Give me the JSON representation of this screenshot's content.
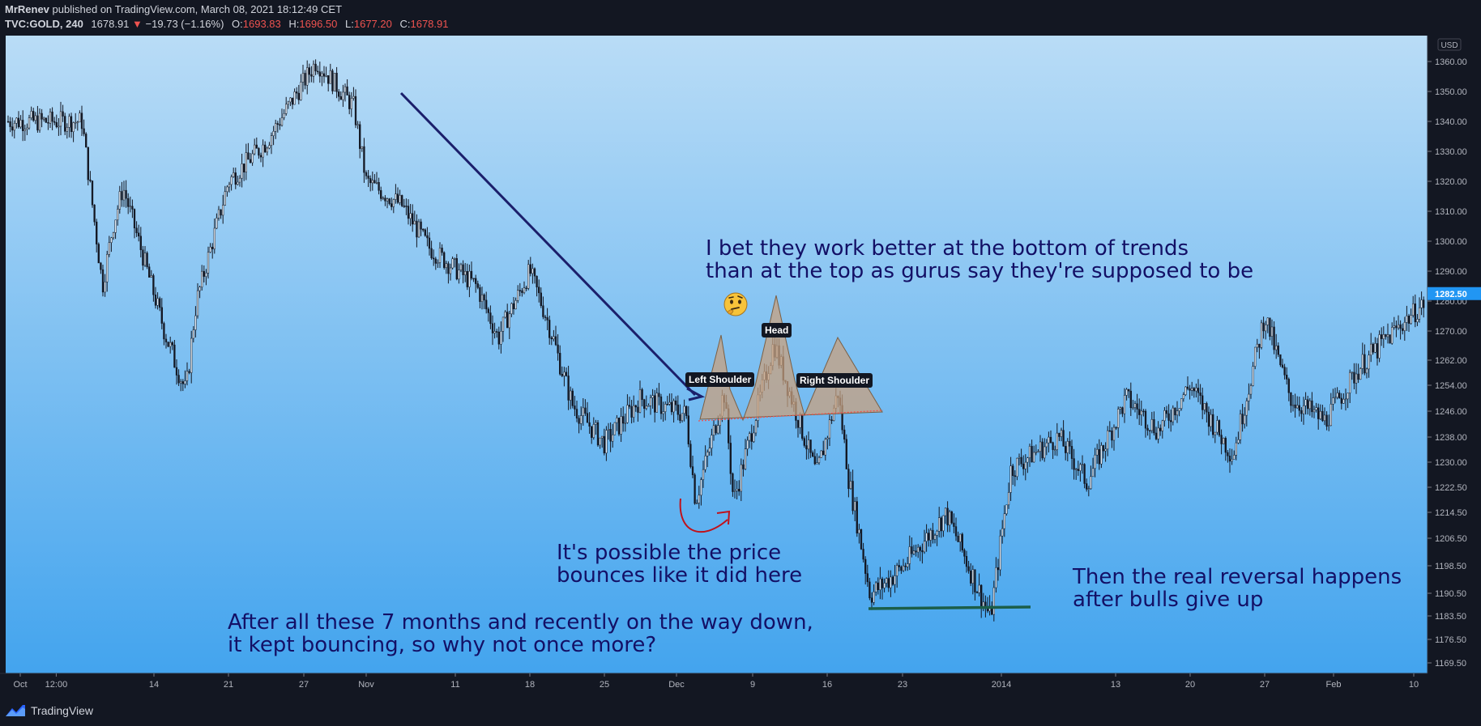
{
  "header": {
    "author": "MrRenev",
    "published": "published on TradingView.com, March 08, 2021 18:12:49 CET",
    "symbol": "TVC:GOLD, 240",
    "last": "1678.91",
    "change": "−19.73 (−1.16%)",
    "o_label": "O:",
    "o": "1693.83",
    "h_label": "H:",
    "h": "1696.50",
    "l_label": "L:",
    "l": "1677.20",
    "c_label": "C:",
    "c": "1678.91",
    "down_icon": "triangle-down-icon"
  },
  "footer": {
    "brand": "TradingView",
    "logo_icon": "tradingview-logo-icon"
  },
  "colors": {
    "bg_top": "#b9dcf6",
    "bg_bottom": "#43a4ee",
    "candle": "#131722",
    "trendline": "#1b1f6b",
    "pattern_fill": "#c8a07e",
    "neckline": "#ef5350",
    "support": "#1b5e4a",
    "bounce_arrow": "#c0121b",
    "price_tag": "#2196f3",
    "annotation_text": "#131066"
  },
  "annotations": {
    "bet_line1": "I bet they work better at the bottom of trends",
    "bet_line2": "than at the top as gurus say they're supposed to be",
    "bounce_line1": "It's possible the price",
    "bounce_line2": "bounces like it did here",
    "months_line1": "After all these 7 months and recently on the way down,",
    "months_line2": "it kept bouncing, so why not once more?",
    "reversal_line1": "Then the real reversal happens",
    "reversal_line2": "after bulls give up",
    "left_shoulder": "Left Shoulder",
    "head": "Head",
    "right_shoulder": "Right Shoulder",
    "emoji_icon": "thinking-face-icon"
  },
  "chart_data": {
    "type": "candlestick",
    "title": "",
    "currency": "USD",
    "current_price": "1282.50",
    "ylim": [
      1164,
      1365
    ],
    "yticks": [
      "1360.00",
      "1350.00",
      "1340.00",
      "1330.00",
      "1320.00",
      "1310.00",
      "1300.00",
      "1290.00",
      "1280.00",
      "1270.00",
      "1262.00",
      "1254.00",
      "1246.00",
      "1238.00",
      "1230.00",
      "1222.50",
      "1214.50",
      "1206.50",
      "1198.50",
      "1190.50",
      "1183.50",
      "1176.50",
      "1169.50"
    ],
    "xticks": [
      "Oct",
      "12:00",
      "14",
      "21",
      "27",
      "Nov",
      "11",
      "18",
      "25",
      "Dec",
      "9",
      "16",
      "23",
      "2014",
      "13",
      "20",
      "27",
      "Feb",
      "10"
    ],
    "price_path_approx": [
      {
        "x": "Oct 7",
        "y": 1340
      },
      {
        "x": "Oct 9",
        "y": 1285
      },
      {
        "x": "Oct 10",
        "y": 1305
      },
      {
        "x": "Oct 11",
        "y": 1318
      },
      {
        "x": "Oct 15",
        "y": 1270
      },
      {
        "x": "Oct 17",
        "y": 1252
      },
      {
        "x": "Oct 18",
        "y": 1280
      },
      {
        "x": "Oct 21",
        "y": 1320
      },
      {
        "x": "Oct 24",
        "y": 1333
      },
      {
        "x": "Oct 28",
        "y": 1360
      },
      {
        "x": "Oct 31",
        "y": 1345
      },
      {
        "x": "Nov 1",
        "y": 1320
      },
      {
        "x": "Nov 5",
        "y": 1312
      },
      {
        "x": "Nov 8",
        "y": 1298
      },
      {
        "x": "Nov 13",
        "y": 1285
      },
      {
        "x": "Nov 15",
        "y": 1268
      },
      {
        "x": "Nov 18",
        "y": 1290
      },
      {
        "x": "Nov 20",
        "y": 1270
      },
      {
        "x": "Nov 22",
        "y": 1248
      },
      {
        "x": "Nov 25",
        "y": 1236
      },
      {
        "x": "Nov 28",
        "y": 1250
      },
      {
        "x": "Dec 2",
        "y": 1245
      },
      {
        "x": "Dec 3",
        "y": 1218
      },
      {
        "x": "Dec 6",
        "y": 1252
      },
      {
        "x": "Dec 7",
        "y": 1218
      },
      {
        "x": "Dec 11",
        "y": 1267
      },
      {
        "x": "Dec 15",
        "y": 1226
      },
      {
        "x": "Dec 17",
        "y": 1252
      },
      {
        "x": "Dec 18",
        "y": 1225
      },
      {
        "x": "Dec 20",
        "y": 1190
      },
      {
        "x": "Dec 23",
        "y": 1198
      },
      {
        "x": "Dec 27",
        "y": 1214
      },
      {
        "x": "Dec 31",
        "y": 1183
      },
      {
        "x": "Jan 2",
        "y": 1228
      },
      {
        "x": "Jan 7",
        "y": 1238
      },
      {
        "x": "Jan 10",
        "y": 1224
      },
      {
        "x": "Jan 14",
        "y": 1250
      },
      {
        "x": "Jan 17",
        "y": 1240
      },
      {
        "x": "Jan 20",
        "y": 1254
      },
      {
        "x": "Jan 24",
        "y": 1232
      },
      {
        "x": "Jan 27",
        "y": 1275
      },
      {
        "x": "Jan 30",
        "y": 1250
      },
      {
        "x": "Feb 3",
        "y": 1243
      },
      {
        "x": "Feb 6",
        "y": 1260
      },
      {
        "x": "Feb 11",
        "y": 1280
      }
    ]
  }
}
